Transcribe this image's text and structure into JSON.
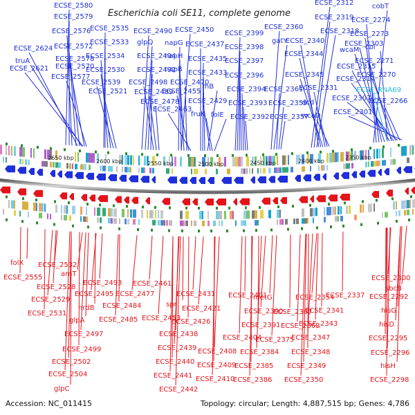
{
  "title": "Escherichia coli SE11, complete genome",
  "footer": {
    "accession": "Accession: NC_011415",
    "summary": "Topology: circular; Length: 4,887,515 bp; Genes: 4,786"
  },
  "colors": {
    "forward": "#1f2fd9",
    "reverse": "#e4141b",
    "rna": "#22b8d8",
    "backbone": "#8a8a8a",
    "tick": "#2a8a2a"
  },
  "scale_ticks": [
    "2650 kbp",
    "2600 kbp",
    "2550 kbp",
    "2500 kbp",
    "2450 kbp",
    "2400 kbp",
    "2350 kbp"
  ],
  "forward_labels": [
    "ECSE_2580",
    "ECSE_2579",
    "ECSE_2576",
    "ECSE_2624",
    "ECSE_2572",
    "truA",
    "ECSE_2578",
    "ECSE_2621",
    "ECSE_2570",
    "ECSE_2577",
    "ECSE_2535",
    "ECSE_2533",
    "ECSE_2534",
    "ECSE_2530",
    "ECSE_2539",
    "ECSE_2521",
    "ECSE_2490",
    "glpQ",
    "ECSE_2494",
    "ECSE_2492",
    "ECSE_2498",
    "ECSE_2489",
    "ECSE_2478",
    "ECSE_2450",
    "napG",
    "napH",
    "napB",
    "ECSE_2470",
    "ECSE_2455",
    "ECSE_2463",
    "ECSE_2437",
    "ECSE_2435",
    "ECSE_2433",
    "rhB",
    "ECSE_2429",
    "fruK",
    "folE",
    "ECSE_2399",
    "ECSE_2398",
    "ECSE_2397",
    "ECSE_2396",
    "ECSE_2394",
    "ECSE_2393",
    "ECSE_2392",
    "ECSE_2360",
    "gatY",
    "ECSE_2361",
    "ECSE_2359",
    "ECSE_2357",
    "ECSE_2312",
    "ECSE_2319",
    "ECSE_2318",
    "ECSE_2340",
    "ECSE_2344",
    "ECSE_2345",
    "ECSE_2331",
    "dcd",
    "wcaD",
    "cobT",
    "ECSE_2274",
    "ECSE_2273",
    "ECSE_2303",
    "wcaM",
    "cbl",
    "ECSE_2315",
    "ECSE_2271",
    "ECSE_2314",
    "ECSE_2270",
    "ECSE_2307",
    "ECSE_2266",
    "ECSE_2301"
  ],
  "rna_labels": [
    "ECSE_RNA69"
  ],
  "reverse_labels": [
    "folX",
    "ECSE_2532",
    "arnT",
    "ECSE_2555",
    "ECSE_2528",
    "ECSE_2529",
    "ECSE_2531",
    "ECSE_2493",
    "ECSE_2495",
    "nrdB",
    "glpA",
    "ECSE_2497",
    "ECSE_2499",
    "ECSE_2502",
    "ECSE_2504",
    "glpC",
    "ECSE_2461",
    "ECSE_2477",
    "ECSE_2484",
    "ECSE_2485",
    "ECSE_2453",
    "spr",
    "ECSE_2431",
    "ECSE_2421",
    "ECSE_2426",
    "ECSE_2438",
    "ECSE_2439",
    "ECSE_2440",
    "ECSE_2441",
    "ECSE_2442",
    "ECSE_2401",
    "ECSE_2404",
    "ECSE_2408",
    "ECSE_2409",
    "ECSE_2410",
    "ECSE_2390",
    "ECSE_2391",
    "metG",
    "ECSE_2384",
    "ECSE_2385",
    "ECSE_2386",
    "ECSE_2375",
    "ECSE_2367",
    "ECSE_2368",
    "ECSE_2354",
    "ECSE_2341",
    "ECSE_2343",
    "ECSE_2347",
    "ECSE_2348",
    "ECSE_2349",
    "ECSE_2350",
    "ECSE_2337",
    "ECSE_2300",
    "sbcB",
    "ECSE_2292",
    "hisG",
    "hisD",
    "ECSE_2295",
    "ECSE_2296",
    "hisH",
    "ECSE_2298"
  ]
}
